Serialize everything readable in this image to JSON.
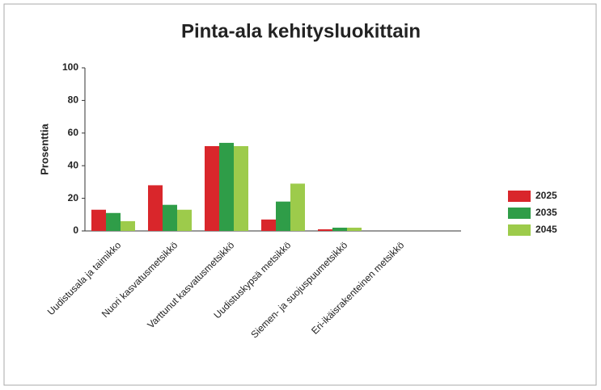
{
  "chart_data": {
    "type": "bar",
    "title": "Pinta-ala kehitysluokittain",
    "y_label": "Prosenttia",
    "categories": [
      "Uudistusala ja taimikko",
      "Nuori kasvatusmetsikkö",
      "Varttunut kasvatusmetsikkö",
      "Uudistuskypsä metsikkö",
      "Siemen- ja suojuspuumetsikkö",
      "Eri-ikäisrakenteinen metsikkö"
    ],
    "series": [
      {
        "name": "2025",
        "color": "#d9262b",
        "values": [
          13,
          28,
          52,
          7,
          1,
          0
        ]
      },
      {
        "name": "2035",
        "color": "#2f9d48",
        "values": [
          11,
          16,
          54,
          18,
          2,
          0
        ]
      },
      {
        "name": "2045",
        "color": "#9dcb4b",
        "values": [
          6,
          13,
          52,
          29,
          2,
          0
        ]
      }
    ],
    "ylim": [
      0,
      100
    ],
    "yticks": [
      0,
      20,
      40,
      60,
      80,
      100
    ],
    "grid": false,
    "legend": "right"
  }
}
